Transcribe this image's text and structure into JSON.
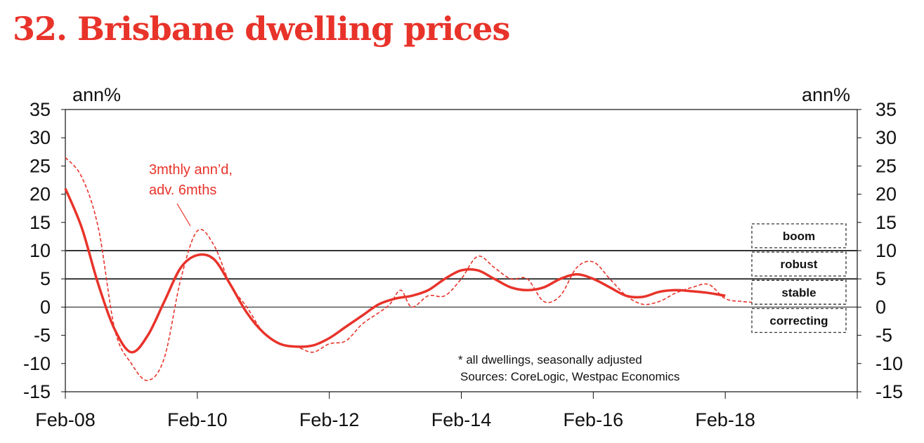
{
  "title": "32. Brisbane dwelling prices",
  "colors": {
    "accent": "#e8332a",
    "axis": "#111111",
    "refline": "#333333"
  },
  "chart_data": {
    "type": "line",
    "xlabel": "",
    "ylabel_left": "ann%",
    "ylabel_right": "ann%",
    "ylim": [
      -15,
      35
    ],
    "yticks": [
      35,
      30,
      25,
      20,
      15,
      10,
      5,
      0,
      -5,
      -10,
      -15
    ],
    "xlim": [
      "2008-02",
      "2020-02"
    ],
    "xticks": [
      {
        "date": "2008-02",
        "label": "Feb-08"
      },
      {
        "date": "2010-02",
        "label": "Feb-10"
      },
      {
        "date": "2012-02",
        "label": "Feb-12"
      },
      {
        "date": "2014-02",
        "label": "Feb-14"
      },
      {
        "date": "2016-02",
        "label": "Feb-16"
      },
      {
        "date": "2018-02",
        "label": "Feb-18"
      },
      {
        "date": "2020-02",
        "label": ""
      }
    ],
    "reference_lines": [
      10,
      5
    ],
    "series": [
      {
        "name": "",
        "style": "solid",
        "x": [
          "2008-02",
          "2008-05",
          "2008-08",
          "2008-11",
          "2009-02",
          "2009-05",
          "2009-08",
          "2009-11",
          "2010-02",
          "2010-05",
          "2010-08",
          "2010-11",
          "2011-02",
          "2011-05",
          "2011-08",
          "2011-11",
          "2012-02",
          "2012-05",
          "2012-08",
          "2012-11",
          "2013-02",
          "2013-05",
          "2013-08",
          "2013-11",
          "2014-02",
          "2014-05",
          "2014-08",
          "2014-11",
          "2015-02",
          "2015-05",
          "2015-08",
          "2015-11",
          "2016-02",
          "2016-05",
          "2016-08",
          "2016-11",
          "2017-02",
          "2017-05",
          "2017-08",
          "2017-11",
          "2018-02"
        ],
        "values": [
          21,
          14,
          4,
          -4,
          -8,
          -5,
          1,
          7,
          9.2,
          8.5,
          4,
          -1,
          -4.5,
          -6.5,
          -7,
          -6.8,
          -5.5,
          -3.5,
          -1.5,
          0.5,
          1.5,
          2,
          3,
          5,
          6.5,
          6.5,
          5,
          3.5,
          3,
          3.5,
          5,
          5.8,
          5,
          3.5,
          2,
          1.8,
          2.7,
          3,
          2.8,
          2.5,
          2
        ]
      },
      {
        "name": "3mthly ann’d, adv. 6mths",
        "style": "dashed",
        "x": [
          "2008-02",
          "2008-05",
          "2008-08",
          "2008-11",
          "2009-02",
          "2009-05",
          "2009-08",
          "2009-11",
          "2010-02",
          "2010-05",
          "2010-08",
          "2010-11",
          "2011-02",
          "2011-05",
          "2011-08",
          "2011-11",
          "2012-02",
          "2012-05",
          "2012-08",
          "2012-11",
          "2013-01",
          "2013-03",
          "2013-05",
          "2013-08",
          "2013-11",
          "2014-02",
          "2014-05",
          "2014-08",
          "2014-11",
          "2015-02",
          "2015-05",
          "2015-08",
          "2015-11",
          "2016-02",
          "2016-05",
          "2016-08",
          "2016-11",
          "2017-02",
          "2017-05",
          "2017-08",
          "2017-11",
          "2018-02",
          "2018-05",
          "2018-08"
        ],
        "values": [
          26.5,
          23,
          14,
          -4,
          -10,
          -13,
          -9,
          5,
          13.5,
          11,
          4,
          0,
          -4.5,
          -6.5,
          -7,
          -8,
          -6.5,
          -6,
          -3,
          -1,
          0.5,
          3,
          0,
          2,
          2,
          5,
          9,
          7,
          5,
          5,
          1,
          2,
          7,
          8,
          5,
          2,
          0.5,
          1,
          2.5,
          3.5,
          4,
          1.5,
          1,
          0.8
        ]
      }
    ],
    "series_label": "3mthly ann’d,\nadv. 6mths",
    "band_labels": [
      "boom",
      "robust",
      "stable",
      "correcting"
    ],
    "notes": [
      "* all dwellings, seasonally adjusted",
      "Sources: CoreLogic, Westpac Economics"
    ]
  },
  "labels": {
    "series_label_line1": "3mthly ann’d,",
    "series_label_line2": "adv. 6mths",
    "note1": "* all dwellings, seasonally adjusted",
    "note2": "Sources: CoreLogic, Westpac Economics"
  }
}
